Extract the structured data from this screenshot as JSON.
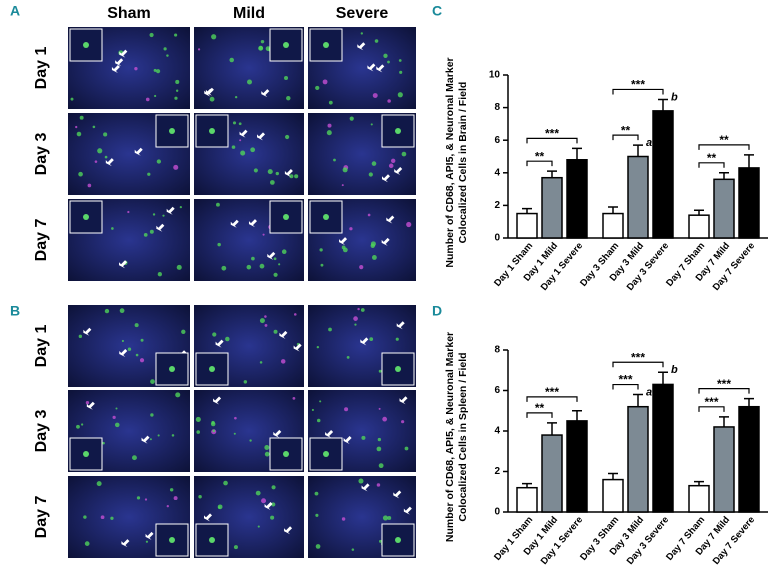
{
  "image_panels": [
    {
      "panel": "A",
      "columns": [
        "Sham",
        "Mild",
        "Severe"
      ],
      "rows": [
        "Day 1",
        "Day 3",
        "Day 7"
      ]
    },
    {
      "panel": "B",
      "rows": [
        "Day 1",
        "Day 3",
        "Day 7"
      ]
    }
  ],
  "chart_data": [
    {
      "type": "bar",
      "panel": "C",
      "ylabel": [
        "Number of CD68, API5, & Neuronal Marker",
        "Colocalized Cells in Brain / Field"
      ],
      "categories": [
        "Day 1 Sham",
        "Day 1 Mild",
        "Day 1 Severe",
        "Day 3 Sham",
        "Day 3 Mild",
        "Day 3 Severe",
        "Day 7 Sham",
        "Day 7 Mild",
        "Day 7 Severe"
      ],
      "values": [
        1.5,
        3.7,
        4.8,
        1.5,
        5.0,
        7.8,
        1.4,
        3.6,
        4.3
      ],
      "errors": [
        0.3,
        0.4,
        0.7,
        0.4,
        0.7,
        0.7,
        0.3,
        0.4,
        0.8
      ],
      "colors": [
        "#ffffff",
        "#7d8a94",
        "#000000",
        "#ffffff",
        "#7d8a94",
        "#000000",
        "#ffffff",
        "#7d8a94",
        "#000000"
      ],
      "ylim": [
        0,
        10
      ],
      "yticks": [
        0,
        2,
        4,
        6,
        8,
        10
      ],
      "brackets": [
        {
          "between": [
            "Day 1 Sham",
            "Day 1 Mild"
          ],
          "label": "**"
        },
        {
          "between": [
            "Day 1 Sham",
            "Day 1 Severe"
          ],
          "label": "***"
        },
        {
          "between": [
            "Day 3 Sham",
            "Day 3 Mild"
          ],
          "label": "**"
        },
        {
          "between": [
            "Day 3 Sham",
            "Day 3 Severe"
          ],
          "label": "***"
        },
        {
          "between": [
            "Day 7 Sham",
            "Day 7 Mild"
          ],
          "label": "**"
        },
        {
          "between": [
            "Day 7 Sham",
            "Day 7 Severe"
          ],
          "label": "**"
        }
      ],
      "letters": [
        {
          "category": "Day 3 Mild",
          "label": "a"
        },
        {
          "category": "Day 3 Severe",
          "label": "b"
        }
      ]
    },
    {
      "type": "bar",
      "panel": "D",
      "ylabel": [
        "Number of CD68, API5, & Neuronal Marker",
        "Colocalized Cells in Spleen / Field"
      ],
      "categories": [
        "Day 1 Sham",
        "Day 1 Mild",
        "Day 1 Severe",
        "Day 3 Sham",
        "Day 3 Mild",
        "Day 3 Severe",
        "Day 7 Sham",
        "Day 7 Mild",
        "Day 7 Severe"
      ],
      "values": [
        1.2,
        3.8,
        4.5,
        1.6,
        5.2,
        6.3,
        1.3,
        4.2,
        5.2
      ],
      "errors": [
        0.2,
        0.6,
        0.5,
        0.3,
        0.6,
        0.6,
        0.2,
        0.5,
        0.4
      ],
      "colors": [
        "#ffffff",
        "#7d8a94",
        "#000000",
        "#ffffff",
        "#7d8a94",
        "#000000",
        "#ffffff",
        "#7d8a94",
        "#000000"
      ],
      "ylim": [
        0,
        8
      ],
      "yticks": [
        0,
        2,
        4,
        6,
        8
      ],
      "brackets": [
        {
          "between": [
            "Day 1 Sham",
            "Day 1 Mild"
          ],
          "label": "**"
        },
        {
          "between": [
            "Day 1 Sham",
            "Day 1 Severe"
          ],
          "label": "***"
        },
        {
          "between": [
            "Day 3 Sham",
            "Day 3 Mild"
          ],
          "label": "***"
        },
        {
          "between": [
            "Day 3 Sham",
            "Day 3 Severe"
          ],
          "label": "***"
        },
        {
          "between": [
            "Day 7 Sham",
            "Day 7 Mild"
          ],
          "label": "***"
        },
        {
          "between": [
            "Day 7 Sham",
            "Day 7 Severe"
          ],
          "label": "***"
        }
      ],
      "letters": [
        {
          "category": "Day 3 Mild",
          "label": "a"
        },
        {
          "category": "Day 3 Severe",
          "label": "b"
        }
      ]
    }
  ]
}
